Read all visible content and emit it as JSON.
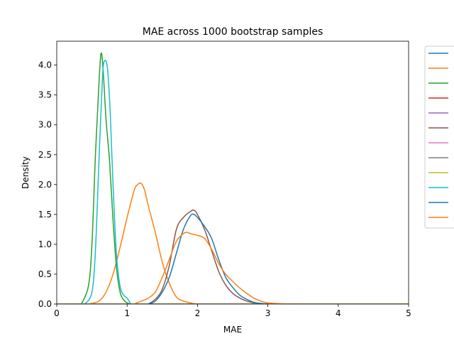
{
  "chart_data": {
    "type": "line",
    "title": "MAE across 1000 bootstrap samples",
    "xlabel": "MAE",
    "ylabel": "Density",
    "xlim": [
      0,
      5
    ],
    "ylim": [
      0,
      4.4
    ],
    "x_ticks": [
      0,
      1,
      2,
      3,
      4,
      5
    ],
    "x_tick_labels": [
      "0",
      "1",
      "2",
      "3",
      "4",
      "5"
    ],
    "y_ticks": [
      0.0,
      0.5,
      1.0,
      1.5,
      2.0,
      2.5,
      3.0,
      3.5,
      4.0
    ],
    "y_tick_labels": [
      "0.0",
      "0.5",
      "1.0",
      "1.5",
      "2.0",
      "2.5",
      "3.0",
      "3.5",
      "4.0"
    ],
    "grid": false,
    "legend_placement": "outside-right",
    "series": [
      {
        "color": "#1f77b4",
        "x": [
          0,
          5
        ],
        "y": [
          0,
          0
        ]
      },
      {
        "color": "#ff7f0e",
        "x": [
          0.45,
          0.6,
          0.7,
          0.8,
          0.9,
          1.0,
          1.1,
          1.15,
          1.2,
          1.25,
          1.3,
          1.4,
          1.5,
          1.6,
          1.7,
          1.8,
          1.9,
          2.0
        ],
        "y": [
          0,
          0.05,
          0.2,
          0.5,
          0.95,
          1.45,
          1.9,
          2.0,
          2.02,
          1.9,
          1.65,
          1.2,
          0.7,
          0.35,
          0.12,
          0.05,
          0.02,
          0
        ]
      },
      {
        "color": "#2ca02c",
        "x": [
          0.35,
          0.45,
          0.5,
          0.55,
          0.6,
          0.63,
          0.66,
          0.7,
          0.75,
          0.8,
          0.85,
          0.9,
          0.95,
          1.0,
          1.05
        ],
        "y": [
          0,
          0.3,
          1.0,
          2.5,
          3.7,
          4.2,
          3.9,
          3.1,
          2.4,
          1.4,
          0.6,
          0.2,
          0.07,
          0.02,
          0
        ]
      },
      {
        "color": "#d62728",
        "x": [
          0,
          5
        ],
        "y": [
          0,
          0
        ]
      },
      {
        "color": "#9467bd",
        "x": [
          0,
          5
        ],
        "y": [
          0,
          0
        ]
      },
      {
        "color": "#8c564b",
        "x": [
          1.3,
          1.4,
          1.5,
          1.6,
          1.7,
          1.8,
          1.9,
          1.95,
          2.0,
          2.1,
          2.2,
          2.3,
          2.4,
          2.5,
          2.6,
          2.7,
          2.8,
          2.9
        ],
        "y": [
          0,
          0.08,
          0.25,
          0.65,
          1.25,
          1.45,
          1.55,
          1.57,
          1.5,
          1.25,
          0.9,
          0.55,
          0.32,
          0.18,
          0.1,
          0.05,
          0.02,
          0
        ]
      },
      {
        "color": "#e377c2",
        "x": [
          0,
          5
        ],
        "y": [
          0,
          0
        ]
      },
      {
        "color": "#7f7f7f",
        "x": [
          0,
          5
        ],
        "y": [
          0,
          0
        ]
      },
      {
        "color": "#bcbd22",
        "x": [
          0,
          5
        ],
        "y": [
          0,
          0
        ]
      },
      {
        "color": "#17becf",
        "x": [
          0.4,
          0.5,
          0.55,
          0.6,
          0.65,
          0.68,
          0.72,
          0.76,
          0.8,
          0.85,
          0.9,
          0.95,
          1.0,
          1.05
        ],
        "y": [
          0,
          0.2,
          0.9,
          2.4,
          3.8,
          4.07,
          3.95,
          3.2,
          2.0,
          0.8,
          0.3,
          0.15,
          0.1,
          0
        ]
      },
      {
        "color": "#1f77b4",
        "x": [
          1.3,
          1.4,
          1.5,
          1.6,
          1.7,
          1.8,
          1.9,
          1.95,
          2.0,
          2.1,
          2.2,
          2.3,
          2.4,
          2.5,
          2.6,
          2.7,
          2.8,
          2.9,
          3.0
        ],
        "y": [
          0,
          0.05,
          0.2,
          0.45,
          0.85,
          1.25,
          1.48,
          1.5,
          1.45,
          1.3,
          1.1,
          0.75,
          0.45,
          0.28,
          0.15,
          0.08,
          0.03,
          0.01,
          0
        ]
      },
      {
        "color": "#ff7f0e",
        "x": [
          1.1,
          1.2,
          1.3,
          1.4,
          1.5,
          1.6,
          1.7,
          1.8,
          1.85,
          1.9,
          2.0,
          2.1,
          2.2,
          2.3,
          2.4,
          2.5,
          2.6,
          2.7,
          2.8,
          2.9,
          3.0,
          3.2,
          3.4
        ],
        "y": [
          0,
          0.05,
          0.1,
          0.2,
          0.45,
          0.75,
          1.05,
          1.18,
          1.2,
          1.18,
          1.15,
          1.1,
          0.92,
          0.68,
          0.5,
          0.38,
          0.27,
          0.18,
          0.1,
          0.05,
          0.02,
          0.005,
          0
        ]
      }
    ]
  }
}
